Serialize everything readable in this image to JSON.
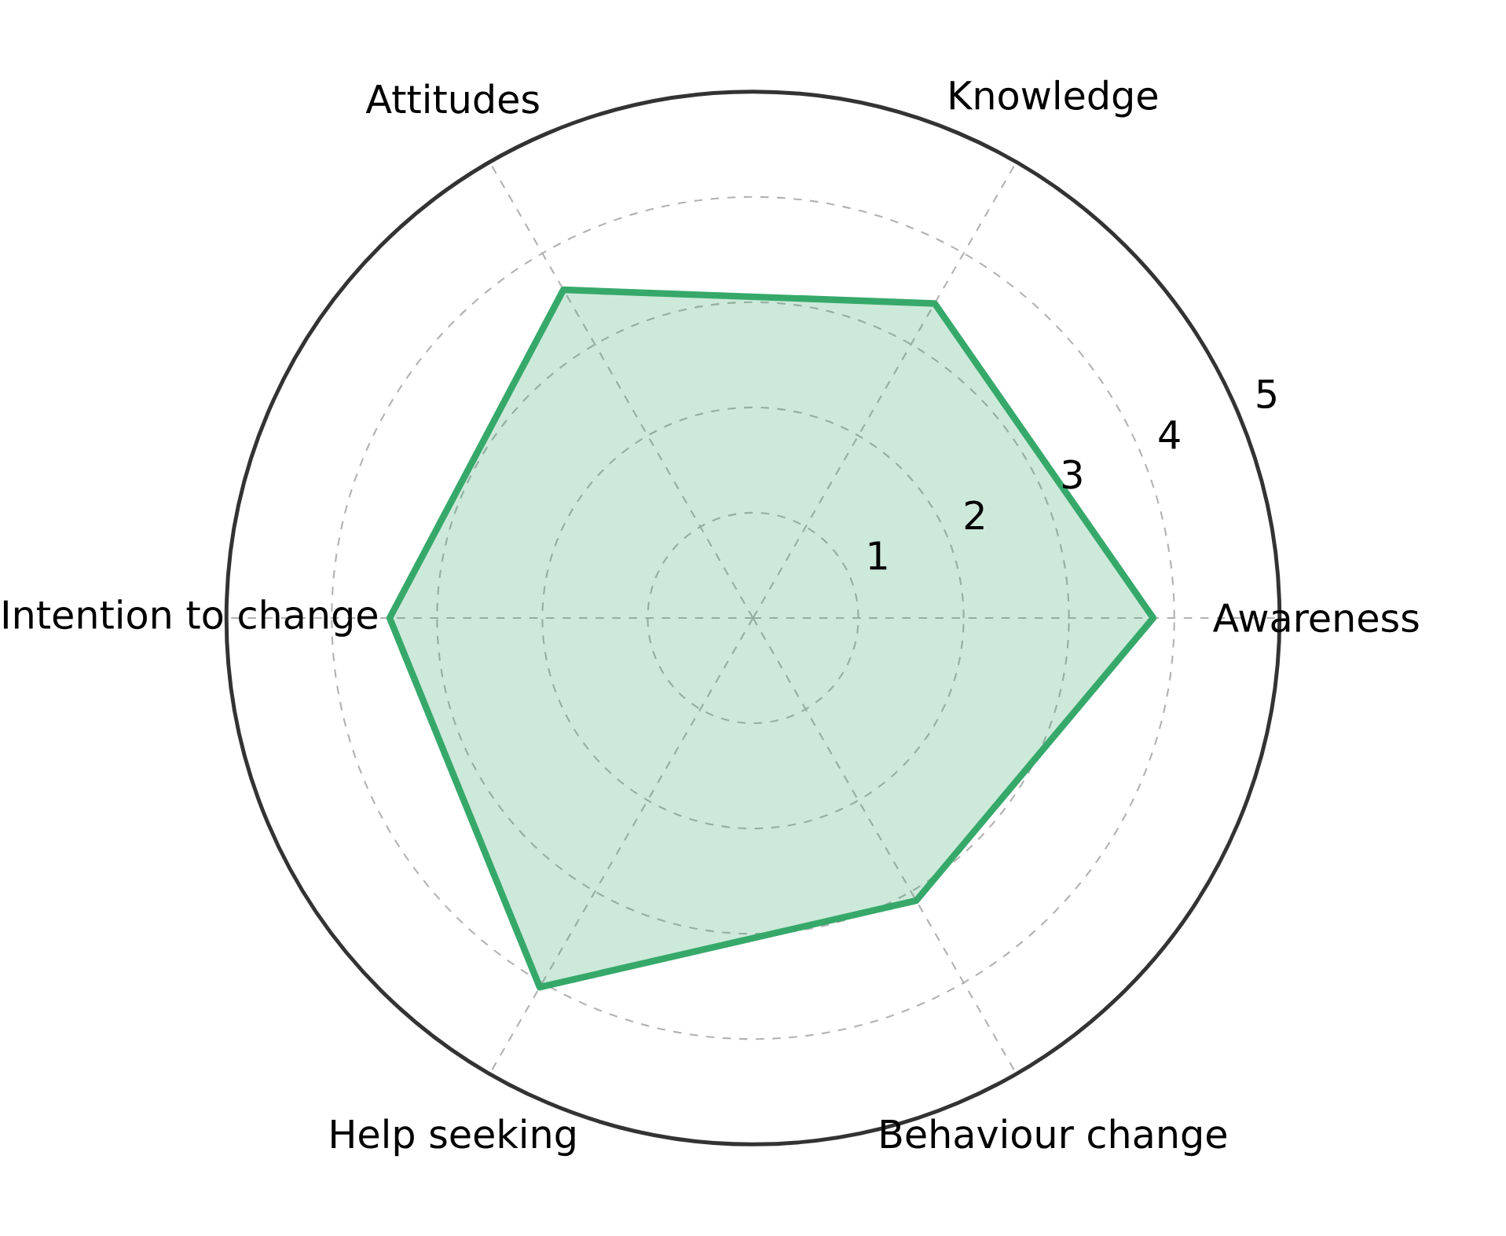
{
  "chart_data": {
    "type": "radar",
    "categories": [
      "Knowledge",
      "Awareness",
      "Behaviour change",
      "Help seeking",
      "Intention to change",
      "Attitudes"
    ],
    "series": [
      {
        "color": "#36a96a",
        "values": [
          3.45,
          3.8,
          3.1,
          4.05,
          3.45,
          3.6
        ]
      }
    ],
    "ylim": [
      0,
      5
    ],
    "yticks": [
      1,
      2,
      3,
      4,
      5
    ],
    "grid": true,
    "line_style": "solid"
  }
}
